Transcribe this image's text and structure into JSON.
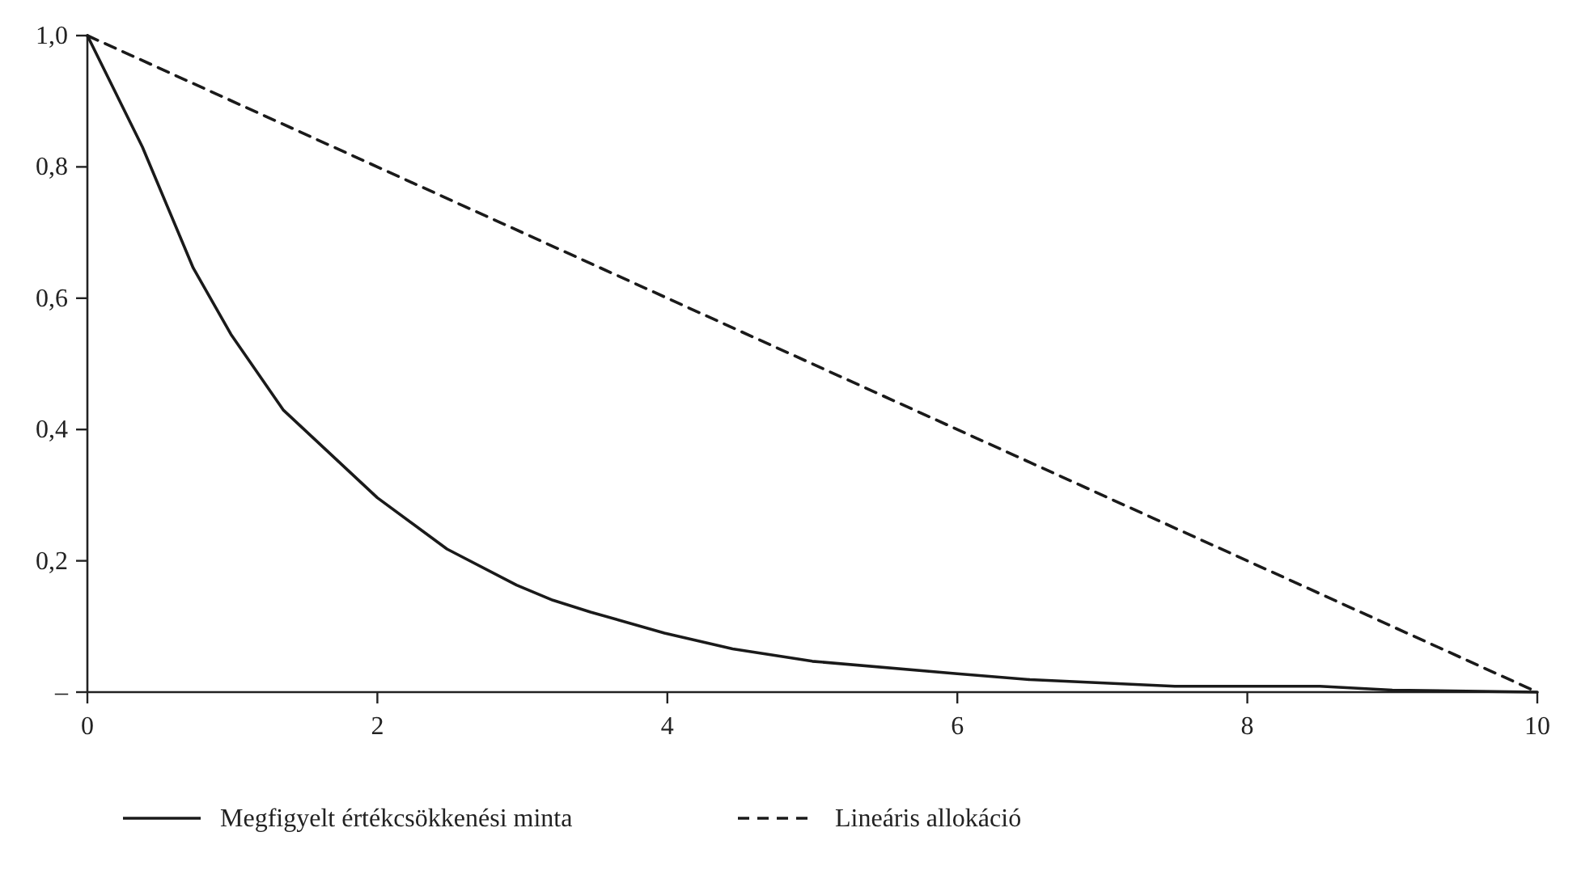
{
  "chart_data": {
    "type": "line",
    "xlim": [
      0,
      10
    ],
    "xticks": [
      0,
      2,
      4,
      6,
      8,
      10
    ],
    "ylim": [
      0,
      1
    ],
    "yticks": [
      {
        "value": 0,
        "label": "–"
      },
      {
        "value": 0.2,
        "label": "0,2"
      },
      {
        "value": 0.4,
        "label": "0,4"
      },
      {
        "value": 0.6,
        "label": "0,6"
      },
      {
        "value": 0.8,
        "label": "0,8"
      },
      {
        "value": 1,
        "label": "1,0"
      }
    ],
    "grid": false,
    "legend": "bottom",
    "marker": "none",
    "series": [
      {
        "name": "Megfigyelt értékcsökkenési minta",
        "color": "#1a1a1a",
        "line_style": "solid",
        "x": [
          0,
          0.38,
          0.73,
          0.99,
          1.35,
          2,
          2.48,
          2.96,
          3.21,
          3.47,
          3.98,
          4.45,
          5,
          6,
          6.5,
          7.5,
          8.5,
          9,
          10
        ],
        "values": [
          1,
          0.83,
          0.646,
          0.545,
          0.43,
          0.296,
          0.218,
          0.163,
          0.14,
          0.122,
          0.09,
          0.066,
          0.047,
          0.028,
          0.019,
          0.009,
          0.009,
          0.003,
          0
        ]
      },
      {
        "name": "Lineáris allokáció",
        "color": "#1a1a1a",
        "line_style": "dashed",
        "x": [
          0,
          10
        ],
        "values": [
          1,
          0
        ]
      }
    ]
  }
}
